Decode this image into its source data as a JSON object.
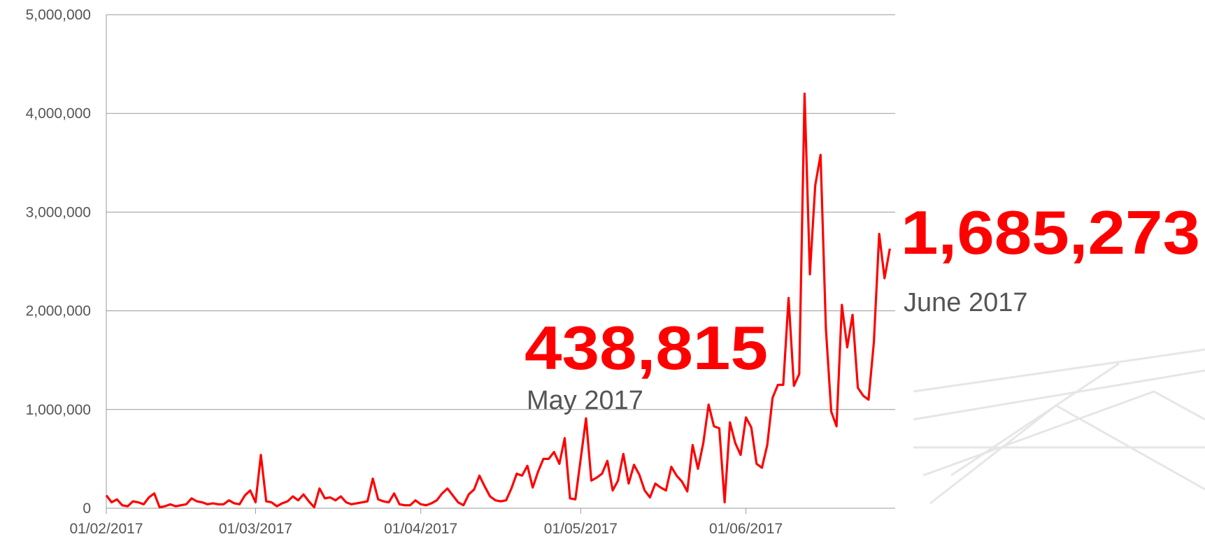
{
  "chart_data": {
    "type": "line",
    "x": [
      "2017-02-01",
      "2017-02-02",
      "2017-02-03",
      "2017-02-04",
      "2017-02-05",
      "2017-02-06",
      "2017-02-07",
      "2017-02-08",
      "2017-02-09",
      "2017-02-10",
      "2017-02-11",
      "2017-02-12",
      "2017-02-13",
      "2017-02-14",
      "2017-02-15",
      "2017-02-16",
      "2017-02-17",
      "2017-02-18",
      "2017-02-19",
      "2017-02-20",
      "2017-02-21",
      "2017-02-22",
      "2017-02-23",
      "2017-02-24",
      "2017-02-25",
      "2017-02-26",
      "2017-02-27",
      "2017-02-28",
      "2017-03-01",
      "2017-03-02",
      "2017-03-03",
      "2017-03-04",
      "2017-03-05",
      "2017-03-06",
      "2017-03-07",
      "2017-03-08",
      "2017-03-09",
      "2017-03-10",
      "2017-03-11",
      "2017-03-12",
      "2017-03-13",
      "2017-03-14",
      "2017-03-15",
      "2017-03-16",
      "2017-03-17",
      "2017-03-18",
      "2017-03-19",
      "2017-03-20",
      "2017-03-21",
      "2017-03-22",
      "2017-03-23",
      "2017-03-24",
      "2017-03-25",
      "2017-03-26",
      "2017-03-27",
      "2017-03-28",
      "2017-03-29",
      "2017-03-30",
      "2017-03-31",
      "2017-04-01",
      "2017-04-02",
      "2017-04-03",
      "2017-04-04",
      "2017-04-05",
      "2017-04-06",
      "2017-04-07",
      "2017-04-08",
      "2017-04-09",
      "2017-04-10",
      "2017-04-11",
      "2017-04-12",
      "2017-04-13",
      "2017-04-14",
      "2017-04-15",
      "2017-04-16",
      "2017-04-17",
      "2017-04-18",
      "2017-04-19",
      "2017-04-20",
      "2017-04-21",
      "2017-04-22",
      "2017-04-23",
      "2017-04-24",
      "2017-04-25",
      "2017-04-26",
      "2017-04-27",
      "2017-04-28",
      "2017-04-29",
      "2017-04-30",
      "2017-05-01",
      "2017-05-02",
      "2017-05-03",
      "2017-05-04",
      "2017-05-05",
      "2017-05-06",
      "2017-05-07",
      "2017-05-08",
      "2017-05-09",
      "2017-05-10",
      "2017-05-11",
      "2017-05-12",
      "2017-05-13",
      "2017-05-14",
      "2017-05-15",
      "2017-05-16",
      "2017-05-17",
      "2017-05-18",
      "2017-05-19",
      "2017-05-20",
      "2017-05-21",
      "2017-05-22",
      "2017-05-23",
      "2017-05-24",
      "2017-05-25",
      "2017-05-26",
      "2017-05-27",
      "2017-05-28",
      "2017-05-29",
      "2017-05-30",
      "2017-05-31",
      "2017-06-01",
      "2017-06-02",
      "2017-06-03",
      "2017-06-04",
      "2017-06-05",
      "2017-06-06",
      "2017-06-07",
      "2017-06-08",
      "2017-06-09",
      "2017-06-10",
      "2017-06-11",
      "2017-06-12",
      "2017-06-13",
      "2017-06-14",
      "2017-06-15",
      "2017-06-16",
      "2017-06-17",
      "2017-06-18",
      "2017-06-19",
      "2017-06-20",
      "2017-06-21",
      "2017-06-22",
      "2017-06-23",
      "2017-06-24",
      "2017-06-25",
      "2017-06-26",
      "2017-06-27",
      "2017-06-28"
    ],
    "values": [
      130000,
      60000,
      90000,
      30000,
      20000,
      70000,
      60000,
      40000,
      110000,
      150000,
      10000,
      20000,
      40000,
      20000,
      30000,
      40000,
      100000,
      70000,
      60000,
      40000,
      50000,
      40000,
      40000,
      80000,
      50000,
      40000,
      130000,
      180000,
      60000,
      540000,
      70000,
      60000,
      20000,
      50000,
      70000,
      120000,
      80000,
      140000,
      70000,
      10000,
      200000,
      100000,
      110000,
      80000,
      120000,
      60000,
      40000,
      50000,
      60000,
      70000,
      300000,
      90000,
      70000,
      60000,
      150000,
      40000,
      30000,
      30000,
      80000,
      40000,
      30000,
      50000,
      80000,
      150000,
      200000,
      130000,
      60000,
      30000,
      140000,
      190000,
      330000,
      220000,
      120000,
      80000,
      70000,
      80000,
      200000,
      350000,
      330000,
      430000,
      210000,
      370000,
      500000,
      500000,
      570000,
      450000,
      710000,
      100000,
      90000,
      500000,
      910000,
      280000,
      310000,
      350000,
      480000,
      180000,
      280000,
      550000,
      250000,
      440000,
      340000,
      180000,
      110000,
      250000,
      210000,
      180000,
      420000,
      330000,
      270000,
      170000,
      640000,
      400000,
      660000,
      1050000,
      830000,
      810000,
      60000,
      870000,
      660000,
      540000,
      920000,
      820000,
      450000,
      410000,
      640000,
      1120000,
      1250000,
      1250000,
      2130000,
      1240000,
      1360000,
      4200000,
      2370000,
      3270000,
      3580000,
      1820000,
      980000,
      830000,
      2060000,
      1630000,
      1960000,
      1220000,
      1140000,
      1100000,
      1680000,
      2780000,
      2330000,
      2630000
    ],
    "color": "#ff0000",
    "xlim": [
      "2017-02-01",
      "2017-06-29"
    ],
    "xticks": [
      {
        "value": "2017-02-01",
        "label": "01/02/2017"
      },
      {
        "value": "2017-03-01",
        "label": "01/03/2017"
      },
      {
        "value": "2017-04-01",
        "label": "01/04/2017"
      },
      {
        "value": "2017-05-01",
        "label": "01/05/2017"
      },
      {
        "value": "2017-06-01",
        "label": "01/06/2017"
      }
    ],
    "ylim": [
      0,
      5000000
    ],
    "yticks": [
      0,
      {
        "value": 1000000,
        "label": "1,000,000"
      },
      {
        "value": 2000000,
        "label": "2,000,000"
      },
      {
        "value": 3000000,
        "label": "3,000,000"
      },
      {
        "value": 4000000,
        "label": "4,000,000"
      },
      {
        "value": 5000000,
        "label": "5,000,000"
      }
    ],
    "grid": true,
    "annotations": [
      {
        "value": "438,815",
        "label": "May 2017"
      },
      {
        "value": "1,685,273",
        "label": "June 2017"
      }
    ]
  }
}
